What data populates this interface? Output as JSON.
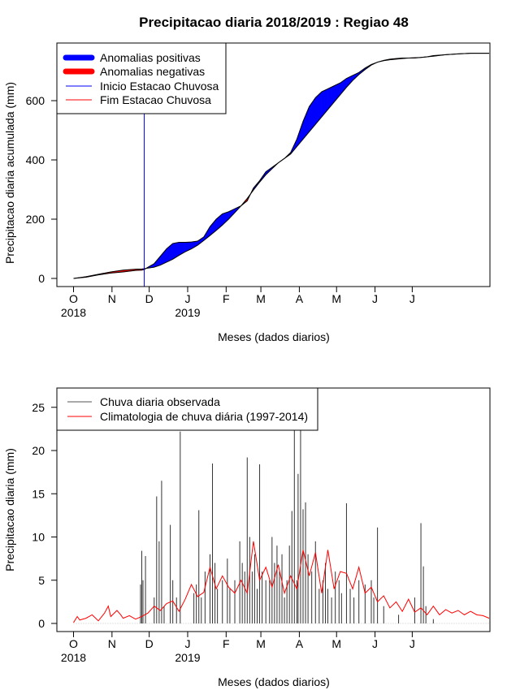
{
  "figure_title": "Precipitacao diaria 2018/2019 : Regiao 48",
  "month_labels": [
    "O",
    "N",
    "D",
    "J",
    "F",
    "M",
    "A",
    "M",
    "J",
    "J"
  ],
  "year_labels": [
    "2018",
    "2019"
  ],
  "chart_data": [
    {
      "type": "area",
      "title": "Precipitacao diaria 2018/2019 : Regiao 48",
      "xlabel": "Meses (dados diarios)",
      "ylabel": "Precipitacao diaria acumulada (mm)",
      "ylim": [
        0,
        760
      ],
      "yticks": [
        0,
        200,
        400,
        600
      ],
      "legend_position": "top-left",
      "legend": [
        {
          "label": "Anomalias positivas",
          "color": "#0000ff"
        },
        {
          "label": "Anomalias negativas",
          "color": "#ff0000"
        },
        {
          "label": "Inicio Estacao Chuvosa",
          "color": "#0000ff"
        },
        {
          "label": "Fim Estacao Chuvosa",
          "color": "#ff0000"
        }
      ],
      "rainy_season_start_day": 57,
      "x": [
        0,
        10,
        20,
        30,
        40,
        50,
        55,
        57,
        60,
        65,
        70,
        75,
        80,
        85,
        90,
        95,
        100,
        105,
        110,
        115,
        120,
        125,
        130,
        135,
        140,
        145,
        150,
        155,
        160,
        165,
        170,
        175,
        180,
        185,
        190,
        195,
        200,
        205,
        210,
        215,
        220,
        225,
        230,
        235,
        240,
        245,
        250,
        255,
        260,
        265,
        270,
        275,
        280,
        285,
        290,
        300,
        310,
        320,
        330,
        335
      ],
      "observed": [
        0,
        4,
        12,
        18,
        22,
        27,
        28,
        30,
        38,
        50,
        75,
        100,
        118,
        122,
        122,
        123,
        126,
        140,
        175,
        200,
        218,
        225,
        235,
        245,
        262,
        305,
        330,
        360,
        375,
        390,
        405,
        425,
        470,
        530,
        580,
        610,
        630,
        640,
        650,
        660,
        675,
        685,
        695,
        710,
        722,
        730,
        735,
        738,
        740,
        742,
        744,
        744,
        746,
        748,
        750,
        755,
        758,
        760,
        760,
        760
      ],
      "climatology": [
        0,
        6,
        14,
        22,
        28,
        31,
        32,
        33,
        35,
        38,
        45,
        55,
        65,
        78,
        90,
        100,
        112,
        128,
        145,
        162,
        180,
        200,
        222,
        245,
        270,
        298,
        325,
        350,
        370,
        390,
        405,
        420,
        445,
        470,
        495,
        520,
        545,
        570,
        595,
        620,
        645,
        668,
        688,
        705,
        720,
        730,
        736,
        740,
        742,
        744,
        744,
        745,
        746,
        748,
        752,
        755,
        758,
        760,
        760,
        760
      ]
    },
    {
      "type": "bar",
      "xlabel": "Meses (dados diarios)",
      "ylabel": "Precipitacao diaria (mm)",
      "ylim": [
        0,
        27
      ],
      "yticks": [
        0,
        5,
        10,
        15,
        20,
        25
      ],
      "legend_position": "top-left",
      "legend": [
        {
          "label": "Chuva diaria observada",
          "color": "#555555"
        },
        {
          "label": "Climatologia de chuva diária (1997-2014)",
          "color": "#ff0000"
        }
      ],
      "observed_peaks": [
        {
          "x": 54,
          "value": 4.5
        },
        {
          "x": 55,
          "value": 8.4
        },
        {
          "x": 56,
          "value": 5
        },
        {
          "x": 58,
          "value": 7.8
        },
        {
          "x": 65,
          "value": 3
        },
        {
          "x": 67,
          "value": 14.7
        },
        {
          "x": 69,
          "value": 9.5
        },
        {
          "x": 71,
          "value": 16.5
        },
        {
          "x": 73,
          "value": 2
        },
        {
          "x": 78,
          "value": 11.4
        },
        {
          "x": 80,
          "value": 5
        },
        {
          "x": 83,
          "value": 3
        },
        {
          "x": 86,
          "value": 22.2
        },
        {
          "x": 97,
          "value": 3.5
        },
        {
          "x": 99,
          "value": 4.5
        },
        {
          "x": 101,
          "value": 13.1
        },
        {
          "x": 103,
          "value": 3
        },
        {
          "x": 106,
          "value": 6
        },
        {
          "x": 110,
          "value": 8
        },
        {
          "x": 112,
          "value": 18.5
        },
        {
          "x": 114,
          "value": 7
        },
        {
          "x": 116,
          "value": 4
        },
        {
          "x": 120,
          "value": 5
        },
        {
          "x": 124,
          "value": 7.5
        },
        {
          "x": 126,
          "value": 4
        },
        {
          "x": 130,
          "value": 5
        },
        {
          "x": 134,
          "value": 9.5
        },
        {
          "x": 136,
          "value": 7
        },
        {
          "x": 138,
          "value": 6
        },
        {
          "x": 140,
          "value": 19.2
        },
        {
          "x": 142,
          "value": 10
        },
        {
          "x": 144,
          "value": 6
        },
        {
          "x": 146,
          "value": 8
        },
        {
          "x": 148,
          "value": 4
        },
        {
          "x": 150,
          "value": 18.4
        },
        {
          "x": 152,
          "value": 6
        },
        {
          "x": 155,
          "value": 5
        },
        {
          "x": 158,
          "value": 5
        },
        {
          "x": 160,
          "value": 10
        },
        {
          "x": 162,
          "value": 7
        },
        {
          "x": 164,
          "value": 9
        },
        {
          "x": 166,
          "value": 6
        },
        {
          "x": 168,
          "value": 8
        },
        {
          "x": 170,
          "value": 3
        },
        {
          "x": 172,
          "value": 5
        },
        {
          "x": 174,
          "value": 9
        },
        {
          "x": 176,
          "value": 13
        },
        {
          "x": 178,
          "value": 23
        },
        {
          "x": 180,
          "value": 5
        },
        {
          "x": 181,
          "value": 17.3
        },
        {
          "x": 183,
          "value": 26.3
        },
        {
          "x": 185,
          "value": 13.2
        },
        {
          "x": 187,
          "value": 14
        },
        {
          "x": 189,
          "value": 8
        },
        {
          "x": 192,
          "value": 6
        },
        {
          "x": 195,
          "value": 9.5
        },
        {
          "x": 198,
          "value": 4
        },
        {
          "x": 201,
          "value": 5
        },
        {
          "x": 203,
          "value": 7
        },
        {
          "x": 205,
          "value": 4
        },
        {
          "x": 208,
          "value": 3
        },
        {
          "x": 211,
          "value": 6
        },
        {
          "x": 214,
          "value": 5
        },
        {
          "x": 216,
          "value": 3.5
        },
        {
          "x": 220,
          "value": 13.9
        },
        {
          "x": 223,
          "value": 4
        },
        {
          "x": 226,
          "value": 3
        },
        {
          "x": 230,
          "value": 5
        },
        {
          "x": 235,
          "value": 4.5
        },
        {
          "x": 240,
          "value": 5
        },
        {
          "x": 242,
          "value": 3
        },
        {
          "x": 245,
          "value": 11.1
        },
        {
          "x": 250,
          "value": 2
        },
        {
          "x": 262,
          "value": 1
        },
        {
          "x": 275,
          "value": 3
        },
        {
          "x": 280,
          "value": 11.6
        },
        {
          "x": 282,
          "value": 6.6
        },
        {
          "x": 284,
          "value": 2
        },
        {
          "x": 290,
          "value": 0.5
        }
      ],
      "climatology": {
        "x": [
          0,
          3,
          5,
          10,
          15,
          20,
          25,
          28,
          30,
          35,
          38,
          40,
          45,
          50,
          55,
          60,
          65,
          70,
          75,
          80,
          85,
          90,
          95,
          100,
          105,
          110,
          115,
          120,
          125,
          130,
          135,
          140,
          145,
          150,
          155,
          160,
          165,
          170,
          175,
          180,
          185,
          190,
          195,
          200,
          205,
          210,
          215,
          220,
          225,
          230,
          235,
          240,
          245,
          250,
          255,
          260,
          265,
          270,
          275,
          280,
          285,
          290,
          295,
          300,
          305,
          310,
          315,
          320,
          325,
          330,
          335
        ],
        "values": [
          0.1,
          0.8,
          0.4,
          0.6,
          1.0,
          0.3,
          1.2,
          2.0,
          0.8,
          1.5,
          1.0,
          0.6,
          0.9,
          0.5,
          0.8,
          1.2,
          2.0,
          1.5,
          2.3,
          2.6,
          1.4,
          2.8,
          4.5,
          3.1,
          3.6,
          6.5,
          4.0,
          5.5,
          4.2,
          3.5,
          5.0,
          3.5,
          9.5,
          5.0,
          6.5,
          4.2,
          6.8,
          3.5,
          5.5,
          4.0,
          8.5,
          5.5,
          8.2,
          3.5,
          8.5,
          4.0,
          6.0,
          5.8,
          4.0,
          6.5,
          3.5,
          4.2,
          2.5,
          3.2,
          1.8,
          2.5,
          1.4,
          2.8,
          1.3,
          1.8,
          1.0,
          2.0,
          1.0,
          1.6,
          1.2,
          1.5,
          1.0,
          1.4,
          1.0,
          0.9,
          0.6
        ]
      }
    }
  ]
}
